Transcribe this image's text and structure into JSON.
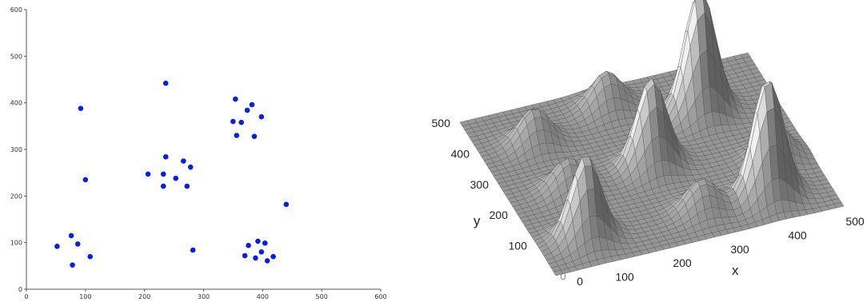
{
  "chart_data": [
    {
      "type": "scatter",
      "title": "",
      "xlabel": "",
      "ylabel": "",
      "xlim": [
        0,
        600
      ],
      "ylim": [
        0,
        600
      ],
      "xticks": [
        "0",
        "100",
        "200",
        "300",
        "400",
        "500",
        "600"
      ],
      "yticks": [
        "0",
        "100",
        "200",
        "300",
        "400",
        "500",
        "600"
      ],
      "grid": false,
      "marker_color": "#0a1ee6",
      "points": [
        {
          "x": 92,
          "y": 388
        },
        {
          "x": 236,
          "y": 442
        },
        {
          "x": 100,
          "y": 235
        },
        {
          "x": 52,
          "y": 92
        },
        {
          "x": 76,
          "y": 115
        },
        {
          "x": 87,
          "y": 97
        },
        {
          "x": 78,
          "y": 52
        },
        {
          "x": 108,
          "y": 70
        },
        {
          "x": 206,
          "y": 247
        },
        {
          "x": 232,
          "y": 247
        },
        {
          "x": 236,
          "y": 284
        },
        {
          "x": 232,
          "y": 221
        },
        {
          "x": 253,
          "y": 238
        },
        {
          "x": 266,
          "y": 275
        },
        {
          "x": 278,
          "y": 262
        },
        {
          "x": 272,
          "y": 221
        },
        {
          "x": 354,
          "y": 408
        },
        {
          "x": 382,
          "y": 396
        },
        {
          "x": 374,
          "y": 384
        },
        {
          "x": 350,
          "y": 360
        },
        {
          "x": 364,
          "y": 358
        },
        {
          "x": 398,
          "y": 370
        },
        {
          "x": 356,
          "y": 330
        },
        {
          "x": 386,
          "y": 328
        },
        {
          "x": 440,
          "y": 182
        },
        {
          "x": 282,
          "y": 84
        },
        {
          "x": 376,
          "y": 94
        },
        {
          "x": 392,
          "y": 103
        },
        {
          "x": 404,
          "y": 99
        },
        {
          "x": 398,
          "y": 80
        },
        {
          "x": 370,
          "y": 72
        },
        {
          "x": 388,
          "y": 67
        },
        {
          "x": 408,
          "y": 61
        },
        {
          "x": 418,
          "y": 70
        }
      ]
    },
    {
      "type": "surface",
      "title": "",
      "xlabel": "x",
      "ylabel": "y",
      "xticks": [
        "0",
        "100",
        "200",
        "300",
        "400",
        "500"
      ],
      "yticks": [
        "0",
        "100",
        "200",
        "300",
        "400",
        "500"
      ],
      "grid": true,
      "surface_color": "#c8c8c8",
      "peaks": [
        {
          "x": 92,
          "y": 388,
          "height": 0.4
        },
        {
          "x": 236,
          "y": 442,
          "height": 0.4
        },
        {
          "x": 100,
          "y": 235,
          "height": 0.35
        },
        {
          "x": 80,
          "y": 85,
          "height": 0.95
        },
        {
          "x": 248,
          "y": 245,
          "height": 1.0
        },
        {
          "x": 372,
          "y": 365,
          "height": 1.4
        },
        {
          "x": 440,
          "y": 182,
          "height": 0.4
        },
        {
          "x": 282,
          "y": 84,
          "height": 0.35
        },
        {
          "x": 395,
          "y": 80,
          "height": 1.35
        }
      ]
    }
  ]
}
